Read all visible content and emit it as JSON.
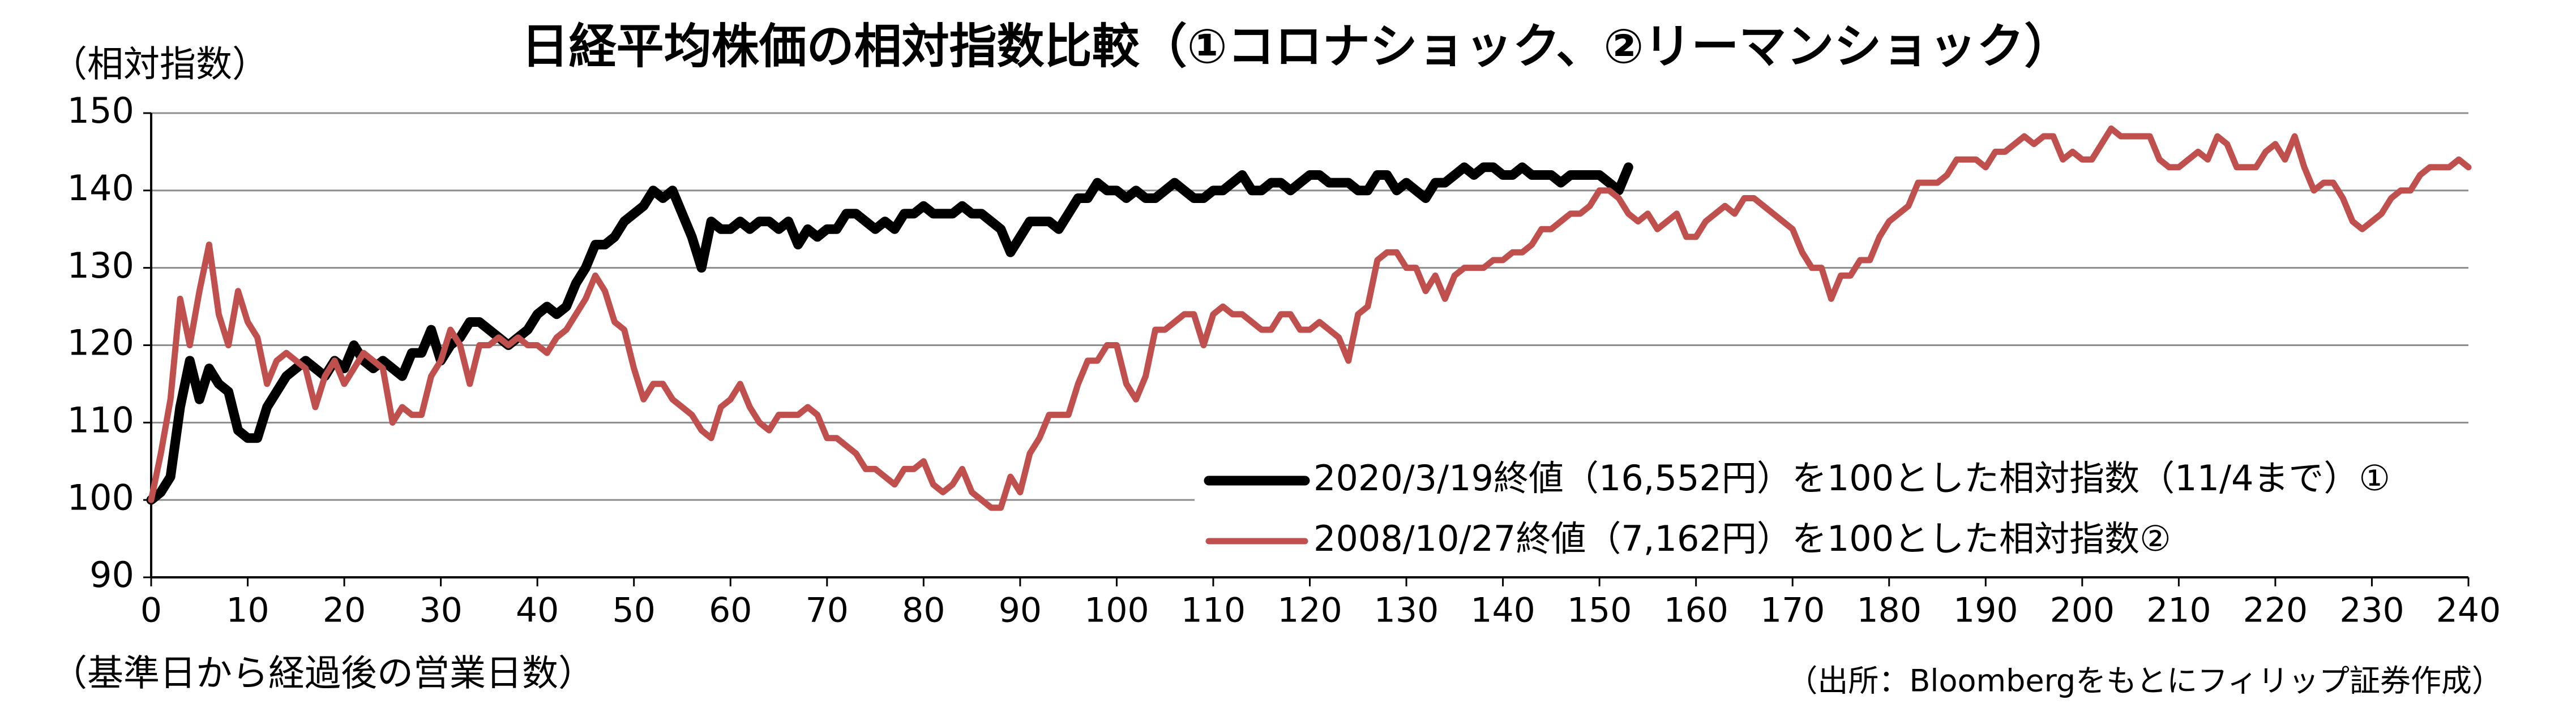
{
  "chart_data": {
    "type": "line",
    "title": "日経平均株価の相対指数比較（①コロナショック、②リーマンショック）",
    "y_label": "（相対指数）",
    "x_label": "（基準日から経過後の営業日数）",
    "source": "（出所：Bloombergをもとにフィリップ証券作成）",
    "x": [
      0,
      1,
      2,
      3,
      4,
      5,
      6,
      7,
      8,
      9,
      10,
      11,
      12,
      13,
      14,
      15,
      16,
      17,
      18,
      19,
      20,
      21,
      22,
      23,
      24,
      25,
      26,
      27,
      28,
      29,
      30,
      31,
      32,
      33,
      34,
      35,
      36,
      37,
      38,
      39,
      40,
      41,
      42,
      43,
      44,
      45,
      46,
      47,
      48,
      49,
      50,
      51,
      52,
      53,
      54,
      55,
      56,
      57,
      58,
      59,
      60,
      61,
      62,
      63,
      64,
      65,
      66,
      67,
      68,
      69,
      70,
      71,
      72,
      73,
      74,
      75,
      76,
      77,
      78,
      79,
      80,
      81,
      82,
      83,
      84,
      85,
      86,
      87,
      88,
      89,
      90,
      91,
      92,
      93,
      94,
      95,
      96,
      97,
      98,
      99,
      100,
      101,
      102,
      103,
      104,
      105,
      106,
      107,
      108,
      109,
      110,
      111,
      112,
      113,
      114,
      115,
      116,
      117,
      118,
      119,
      120,
      121,
      122,
      123,
      124,
      125,
      126,
      127,
      128,
      129,
      130,
      131,
      132,
      133,
      134,
      135,
      136,
      137,
      138,
      139,
      140,
      141,
      142,
      143,
      144,
      145,
      146,
      147,
      148,
      149,
      150,
      151,
      152,
      153,
      154,
      155,
      156,
      157,
      158,
      159,
      160,
      161,
      162,
      163,
      164,
      165,
      166,
      167,
      168,
      169,
      170,
      171,
      172,
      173,
      174,
      175,
      176,
      177,
      178,
      179,
      180,
      181,
      182,
      183,
      184,
      185,
      186,
      187,
      188,
      189,
      190,
      191,
      192,
      193,
      194,
      195,
      196,
      197,
      198,
      199,
      200,
      201,
      202,
      203,
      204,
      205,
      206,
      207,
      208,
      209,
      210,
      211,
      212,
      213,
      214,
      215,
      216,
      217,
      218,
      219,
      220,
      221,
      222,
      223,
      224,
      225,
      226,
      227,
      228,
      229,
      230,
      231,
      232,
      233,
      234,
      235,
      236,
      237,
      238,
      239,
      240
    ],
    "series": [
      {
        "name": "2020/3/19終値（16,552円）を100とした相対指数（11/4まで）①",
        "color": "#000000",
        "values": [
          100,
          101,
          103,
          112,
          118,
          113,
          117,
          115,
          114,
          109,
          108,
          108,
          112,
          114,
          116,
          117,
          118,
          117,
          116,
          118,
          117,
          120,
          118,
          117,
          118,
          117,
          116,
          119,
          119,
          122,
          118,
          120,
          121,
          123,
          123,
          122,
          121,
          120,
          121,
          122,
          124,
          125,
          124,
          125,
          128,
          130,
          133,
          133,
          134,
          136,
          137,
          138,
          140,
          139,
          140,
          137,
          134,
          130,
          136,
          135,
          135,
          136,
          135,
          136,
          136,
          135,
          136,
          133,
          135,
          134,
          135,
          135,
          137,
          137,
          136,
          135,
          136,
          135,
          137,
          137,
          138,
          137,
          137,
          137,
          138,
          137,
          137,
          136,
          135,
          132,
          134,
          136,
          136,
          136,
          135,
          137,
          139,
          139,
          141,
          140,
          140,
          139,
          140,
          139,
          139,
          140,
          141,
          140,
          139,
          139,
          140,
          140,
          141,
          142,
          140,
          140,
          141,
          141,
          140,
          141,
          142,
          142,
          141,
          141,
          141,
          140,
          140,
          142,
          142,
          140,
          141,
          140,
          139,
          141,
          141,
          142,
          143,
          142,
          143,
          143,
          142,
          142,
          143,
          142,
          142,
          142,
          141,
          142,
          142,
          142,
          142,
          141,
          140,
          143,
          null,
          null,
          null,
          null,
          null,
          null,
          null,
          null,
          null,
          null,
          null,
          null,
          null,
          null,
          null,
          null,
          null,
          null,
          null,
          null,
          null,
          null,
          null,
          null,
          null,
          null,
          null,
          null,
          null,
          null,
          null,
          null,
          null,
          null,
          null,
          null,
          null,
          null,
          null,
          null,
          null,
          null,
          null,
          null,
          null,
          null,
          null,
          null,
          null,
          null,
          null,
          null,
          null,
          null,
          null,
          null,
          null,
          null,
          null,
          null,
          null,
          null,
          null,
          null,
          null,
          null,
          null,
          null,
          null,
          null,
          null,
          null,
          null,
          null,
          null,
          null,
          null,
          null,
          null,
          null,
          null,
          null,
          null,
          null,
          null,
          null,
          null
        ]
      },
      {
        "name": "2008/10/27終値（7,162円）を100とした相対指数②",
        "color": "#c0504d",
        "values": [
          100,
          106,
          113,
          126,
          120,
          127,
          133,
          124,
          120,
          127,
          123,
          121,
          115,
          118,
          119,
          118,
          117,
          112,
          116,
          118,
          115,
          117,
          119,
          118,
          117,
          110,
          112,
          111,
          111,
          116,
          118,
          122,
          120,
          115,
          120,
          120,
          121,
          120,
          121,
          120,
          120,
          119,
          121,
          122,
          124,
          126,
          129,
          127,
          123,
          122,
          117,
          113,
          115,
          115,
          113,
          112,
          111,
          109,
          108,
          112,
          113,
          115,
          112,
          110,
          109,
          111,
          111,
          111,
          112,
          111,
          108,
          108,
          107,
          106,
          104,
          104,
          103,
          102,
          104,
          104,
          105,
          102,
          101,
          102,
          104,
          101,
          100,
          99,
          99,
          103,
          101,
          106,
          108,
          111,
          111,
          111,
          115,
          118,
          118,
          120,
          120,
          115,
          113,
          116,
          122,
          122,
          123,
          124,
          124,
          120,
          124,
          125,
          124,
          124,
          123,
          122,
          122,
          124,
          124,
          122,
          122,
          123,
          122,
          121,
          118,
          124,
          125,
          131,
          132,
          132,
          130,
          130,
          127,
          129,
          126,
          129,
          130,
          130,
          130,
          131,
          131,
          132,
          132,
          133,
          135,
          135,
          136,
          137,
          137,
          138,
          140,
          140,
          139,
          137,
          136,
          137,
          135,
          136,
          137,
          134,
          134,
          136,
          137,
          138,
          137,
          139,
          139,
          138,
          137,
          136,
          135,
          132,
          130,
          130,
          126,
          129,
          129,
          131,
          131,
          134,
          136,
          137,
          138,
          141,
          141,
          141,
          142,
          144,
          144,
          144,
          143,
          145,
          145,
          146,
          147,
          146,
          147,
          147,
          144,
          145,
          144,
          144,
          146,
          148,
          147,
          147,
          147,
          147,
          144,
          143,
          143,
          144,
          145,
          144,
          147,
          146,
          143,
          143,
          143,
          145,
          146,
          144,
          147,
          143,
          140,
          141,
          141,
          139,
          136,
          135,
          136,
          137,
          139,
          140,
          140,
          142,
          143,
          143,
          143,
          144,
          143
        ]
      }
    ],
    "xlim": [
      0,
      240
    ],
    "ylim": [
      90,
      150
    ],
    "xticks": [
      0,
      10,
      20,
      30,
      40,
      50,
      60,
      70,
      80,
      90,
      100,
      110,
      120,
      130,
      140,
      150,
      160,
      170,
      180,
      190,
      200,
      210,
      220,
      230,
      240
    ],
    "yticks": [
      90,
      100,
      110,
      120,
      130,
      140,
      150
    ],
    "grid": true
  }
}
